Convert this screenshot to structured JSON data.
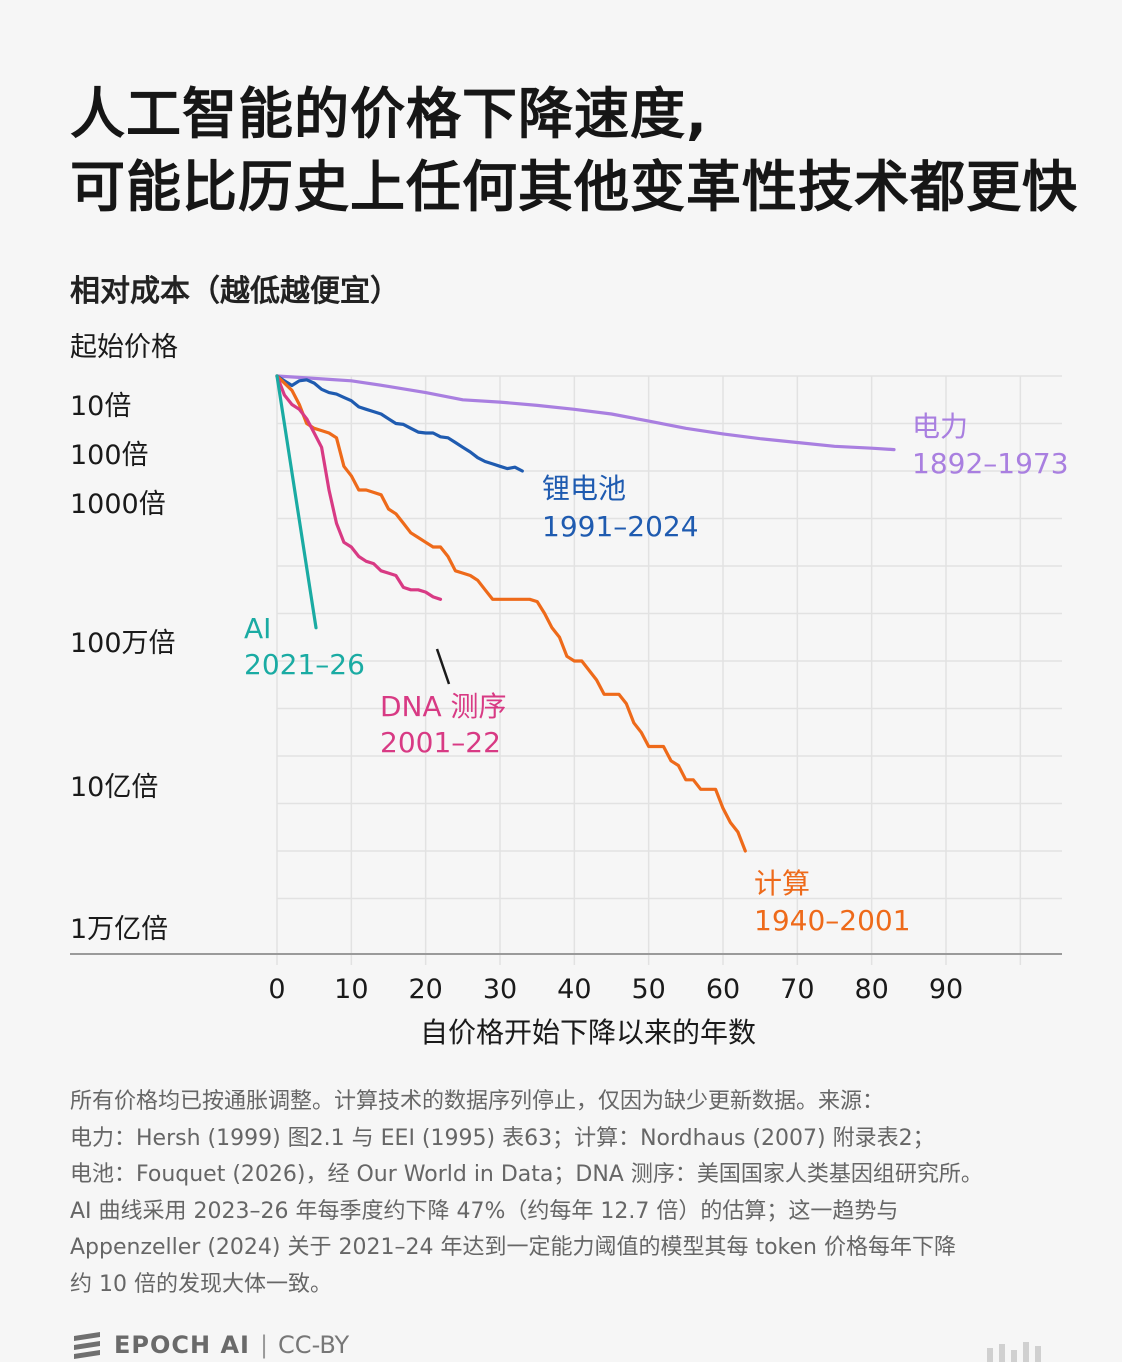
{
  "title_line1": "人工智能的价格下降速度,",
  "title_line2": "可能比历史上任何其他变革性技术都更快",
  "chart_data": {
    "type": "line",
    "title": "人工智能的价格下降速度, 可能比历史上任何其他变革性技术都更快",
    "subtitle": "相对成本（越低越便宜）",
    "xlabel": "自价格开始下降以来的年数",
    "ylabel": "相对成本（越低越便宜）",
    "y_scale": "log",
    "xlim": [
      0,
      90
    ],
    "x_ticks": [
      0,
      10,
      20,
      30,
      40,
      50,
      60,
      70,
      80,
      90
    ],
    "y_ticks": [
      {
        "value": 1,
        "label": "起始价格"
      },
      {
        "value": 10,
        "label": "10倍"
      },
      {
        "value": 100,
        "label": "100倍"
      },
      {
        "value": 1000,
        "label": "1000倍"
      },
      {
        "value": 1000000,
        "label": "100万倍"
      },
      {
        "value": 1000000000,
        "label": "10亿倍"
      },
      {
        "value": 1000000000000,
        "label": "1万亿倍"
      }
    ],
    "series": [
      {
        "name": "电力",
        "years": "1892–1973",
        "color": "#a97fe0",
        "points": [
          [
            0,
            0
          ],
          [
            5,
            0.05
          ],
          [
            10,
            0.1
          ],
          [
            15,
            0.22
          ],
          [
            20,
            0.35
          ],
          [
            25,
            0.5
          ],
          [
            30,
            0.55
          ],
          [
            35,
            0.62
          ],
          [
            40,
            0.7
          ],
          [
            45,
            0.8
          ],
          [
            50,
            0.95
          ],
          [
            55,
            1.1
          ],
          [
            60,
            1.22
          ],
          [
            65,
            1.32
          ],
          [
            70,
            1.4
          ],
          [
            75,
            1.48
          ],
          [
            80,
            1.52
          ],
          [
            83,
            1.55
          ]
        ]
      },
      {
        "name": "锂电池",
        "years": "1991–2024",
        "color": "#1f5bb0",
        "points": [
          [
            0,
            0
          ],
          [
            1,
            0.1
          ],
          [
            2,
            0.2
          ],
          [
            3,
            0.1
          ],
          [
            4,
            0.08
          ],
          [
            5,
            0.15
          ],
          [
            6,
            0.28
          ],
          [
            7,
            0.35
          ],
          [
            8,
            0.38
          ],
          [
            9,
            0.45
          ],
          [
            10,
            0.52
          ],
          [
            11,
            0.65
          ],
          [
            12,
            0.7
          ],
          [
            13,
            0.75
          ],
          [
            14,
            0.8
          ],
          [
            15,
            0.9
          ],
          [
            16,
            1.0
          ],
          [
            17,
            1.02
          ],
          [
            18,
            1.1
          ],
          [
            19,
            1.18
          ],
          [
            20,
            1.2
          ],
          [
            21,
            1.2
          ],
          [
            22,
            1.28
          ],
          [
            23,
            1.3
          ],
          [
            24,
            1.4
          ],
          [
            25,
            1.5
          ],
          [
            26,
            1.6
          ],
          [
            27,
            1.72
          ],
          [
            28,
            1.8
          ],
          [
            29,
            1.85
          ],
          [
            30,
            1.9
          ],
          [
            31,
            1.95
          ],
          [
            32,
            1.92
          ],
          [
            33,
            2.0
          ]
        ]
      },
      {
        "name": "计算",
        "years": "1940–2001",
        "color": "#ee6a1a",
        "points": [
          [
            0,
            0
          ],
          [
            2,
            0.3
          ],
          [
            3,
            0.6
          ],
          [
            4,
            1.0
          ],
          [
            5,
            1.1
          ],
          [
            6,
            1.15
          ],
          [
            7,
            1.2
          ],
          [
            8,
            1.3
          ],
          [
            9,
            1.9
          ],
          [
            10,
            2.1
          ],
          [
            11,
            2.4
          ],
          [
            12,
            2.4
          ],
          [
            13,
            2.45
          ],
          [
            14,
            2.5
          ],
          [
            15,
            2.8
          ],
          [
            16,
            2.9
          ],
          [
            17,
            3.1
          ],
          [
            18,
            3.3
          ],
          [
            19,
            3.4
          ],
          [
            20,
            3.5
          ],
          [
            21,
            3.6
          ],
          [
            22,
            3.6
          ],
          [
            23,
            3.8
          ],
          [
            24,
            4.1
          ],
          [
            25,
            4.15
          ],
          [
            26,
            4.2
          ],
          [
            27,
            4.3
          ],
          [
            28,
            4.5
          ],
          [
            29,
            4.7
          ],
          [
            30,
            4.7
          ],
          [
            32,
            4.7
          ],
          [
            34,
            4.7
          ],
          [
            35,
            4.75
          ],
          [
            36,
            5.0
          ],
          [
            37,
            5.3
          ],
          [
            38,
            5.5
          ],
          [
            39,
            5.9
          ],
          [
            40,
            6.0
          ],
          [
            41,
            6.0
          ],
          [
            42,
            6.2
          ],
          [
            43,
            6.4
          ],
          [
            44,
            6.7
          ],
          [
            45,
            6.7
          ],
          [
            46,
            6.7
          ],
          [
            47,
            6.9
          ],
          [
            48,
            7.3
          ],
          [
            49,
            7.5
          ],
          [
            50,
            7.8
          ],
          [
            51,
            7.8
          ],
          [
            52,
            7.8
          ],
          [
            53,
            8.1
          ],
          [
            54,
            8.2
          ],
          [
            55,
            8.5
          ],
          [
            56,
            8.5
          ],
          [
            57,
            8.7
          ],
          [
            58,
            8.7
          ],
          [
            59,
            8.7
          ],
          [
            60,
            9.1
          ],
          [
            61,
            9.4
          ],
          [
            62,
            9.6
          ],
          [
            63,
            10.0
          ]
        ]
      },
      {
        "name": "DNA 测序",
        "years": "2001–22",
        "color": "#d83a84",
        "points": [
          [
            0,
            0
          ],
          [
            1,
            0.4
          ],
          [
            2,
            0.6
          ],
          [
            3,
            0.7
          ],
          [
            4,
            0.9
          ],
          [
            5,
            1.2
          ],
          [
            6,
            1.5
          ],
          [
            7,
            2.4
          ],
          [
            8,
            3.1
          ],
          [
            9,
            3.5
          ],
          [
            10,
            3.6
          ],
          [
            11,
            3.8
          ],
          [
            12,
            3.9
          ],
          [
            13,
            3.95
          ],
          [
            14,
            4.1
          ],
          [
            15,
            4.15
          ],
          [
            16,
            4.2
          ],
          [
            17,
            4.45
          ],
          [
            18,
            4.5
          ],
          [
            19,
            4.5
          ],
          [
            20,
            4.55
          ],
          [
            21,
            4.65
          ],
          [
            22,
            4.7
          ]
        ]
      },
      {
        "name": "AI",
        "years": "2021–26",
        "color": "#1aaba3",
        "points": [
          [
            0,
            0
          ],
          [
            5.25,
            5.3
          ]
        ]
      }
    ],
    "extra_ticks": [
      "1万亿倍"
    ],
    "legend": "direct labels at line ends"
  },
  "footnote": [
    "所有价格均已按通胀调整。计算技术的数据序列停止，仅因为缺少更新数据。来源：",
    "电力：Hersh (1999) 图2.1 与 EEI (1995) 表63；计算：Nordhaus (2007) 附录表2；",
    "电池：Fouquet (2026)，经 Our World in Data；DNA 测序：美国国家人类基因组研究所。",
    "AI 曲线采用 2023–26 年每季度约下降 47%（约每年 12.7 倍）的估算；这一趋势与",
    "Appenzeller (2024) 关于 2021–24 年达到一定能力阈值的模型其每 token 价格每年下降",
    "约 10 倍的发现大体一致。"
  ],
  "footer": {
    "brand": "EPOCH AI",
    "separator": "|",
    "license": "CC-BY"
  }
}
